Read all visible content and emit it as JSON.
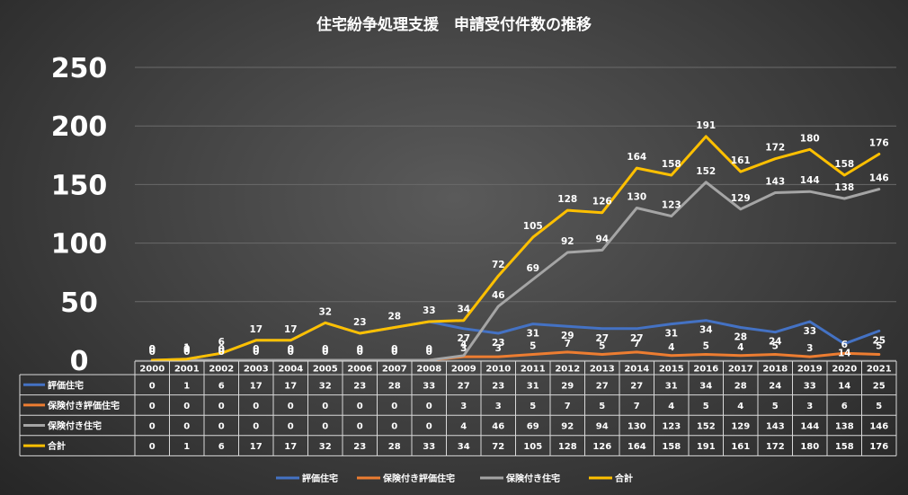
{
  "chart_data": {
    "type": "line",
    "title": "住宅紛争処理支援　申請受付件数の推移",
    "categories": [
      "2000",
      "2001",
      "2002",
      "2003",
      "2004",
      "2005",
      "2006",
      "2007",
      "2008",
      "2009",
      "2010",
      "2011",
      "2012",
      "2013",
      "2014",
      "2015",
      "2016",
      "2017",
      "2018",
      "2019",
      "2020",
      "2021"
    ],
    "ylim": [
      0,
      250
    ],
    "yticks": [
      0,
      50,
      100,
      150,
      200,
      250
    ],
    "grid": true,
    "legend_position": "bottom",
    "series": [
      {
        "name": "評価住宅",
        "color": "#4472C4",
        "values": [
          0,
          1,
          6,
          17,
          17,
          32,
          23,
          28,
          33,
          27,
          23,
          31,
          29,
          27,
          27,
          31,
          34,
          28,
          24,
          33,
          14,
          25
        ]
      },
      {
        "name": "保険付き評価住宅",
        "color": "#ED7D31",
        "values": [
          0,
          0,
          0,
          0,
          0,
          0,
          0,
          0,
          0,
          3,
          3,
          5,
          7,
          5,
          7,
          4,
          5,
          4,
          5,
          3,
          6,
          5
        ]
      },
      {
        "name": "保険付き住宅",
        "color": "#A5A5A5",
        "values": [
          0,
          0,
          0,
          0,
          0,
          0,
          0,
          0,
          0,
          4,
          46,
          69,
          92,
          94,
          130,
          123,
          152,
          129,
          143,
          144,
          138,
          146
        ]
      },
      {
        "name": "合計",
        "color": "#FFC000",
        "values": [
          0,
          1,
          6,
          17,
          17,
          32,
          23,
          28,
          33,
          34,
          72,
          105,
          128,
          126,
          164,
          158,
          191,
          161,
          172,
          180,
          158,
          176
        ]
      }
    ]
  }
}
